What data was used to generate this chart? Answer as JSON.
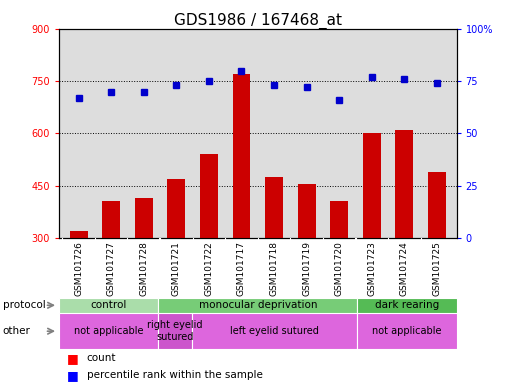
{
  "title": "GDS1986 / 167468_at",
  "samples": [
    "GSM101726",
    "GSM101727",
    "GSM101728",
    "GSM101721",
    "GSM101722",
    "GSM101717",
    "GSM101718",
    "GSM101719",
    "GSM101720",
    "GSM101723",
    "GSM101724",
    "GSM101725"
  ],
  "counts": [
    320,
    405,
    415,
    470,
    540,
    770,
    475,
    455,
    405,
    600,
    610,
    490
  ],
  "percentiles": [
    67,
    70,
    70,
    73,
    75,
    80,
    73,
    72,
    66,
    77,
    76,
    74
  ],
  "ylim_left": [
    300,
    900
  ],
  "ylim_right": [
    0,
    100
  ],
  "yticks_left": [
    300,
    450,
    600,
    750,
    900
  ],
  "yticks_right": [
    0,
    25,
    50,
    75,
    100
  ],
  "ytick_labels_right": [
    "0",
    "25",
    "50",
    "75",
    "100%"
  ],
  "protocol_groups": [
    {
      "label": "control",
      "start": 0,
      "end": 3,
      "color": "#aaddaa"
    },
    {
      "label": "monocular deprivation",
      "start": 3,
      "end": 9,
      "color": "#77cc77"
    },
    {
      "label": "dark rearing",
      "start": 9,
      "end": 12,
      "color": "#55bb55"
    }
  ],
  "other_groups": [
    {
      "label": "not applicable",
      "start": 0,
      "end": 3,
      "color": "#dd66dd"
    },
    {
      "label": "right eyelid\nsutured",
      "start": 3,
      "end": 4,
      "color": "#cc55cc"
    },
    {
      "label": "left eyelid sutured",
      "start": 4,
      "end": 9,
      "color": "#dd66dd"
    },
    {
      "label": "not applicable",
      "start": 9,
      "end": 12,
      "color": "#dd66dd"
    }
  ],
  "bar_color": "#cc0000",
  "dot_color": "#0000cc",
  "bg_color": "#dddddd",
  "title_fontsize": 11,
  "tick_fontsize": 7,
  "label_fontsize": 8
}
